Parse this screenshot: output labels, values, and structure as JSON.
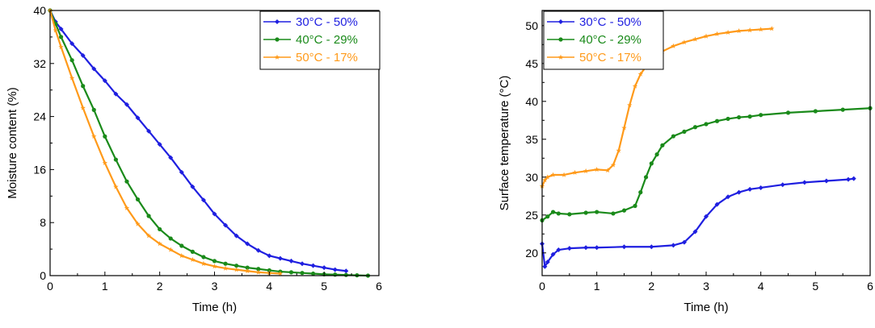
{
  "chart_data": [
    {
      "type": "line",
      "title": "",
      "xlabel": "Time (h)",
      "ylabel": "Moisture content (%)",
      "xlim": [
        0,
        6
      ],
      "ylim": [
        0,
        40
      ],
      "xticks": [
        0,
        1,
        2,
        3,
        4,
        5,
        6
      ],
      "yticks": [
        0,
        8,
        16,
        24,
        32,
        40
      ],
      "grid": false,
      "legend_position": "top-right",
      "series": [
        {
          "name": "30°C - 50%",
          "color": "#1f1fe0",
          "marker": "diamond",
          "x": [
            0,
            0.1,
            0.2,
            0.4,
            0.6,
            0.8,
            1.0,
            1.2,
            1.4,
            1.6,
            1.8,
            2.0,
            2.2,
            2.4,
            2.6,
            2.8,
            3.0,
            3.2,
            3.4,
            3.6,
            3.8,
            4.0,
            4.2,
            4.4,
            4.6,
            4.8,
            5.0,
            5.2,
            5.4
          ],
          "y": [
            40,
            38.3,
            37.2,
            35.0,
            33.2,
            31.2,
            29.4,
            27.4,
            25.8,
            23.8,
            21.8,
            19.8,
            17.8,
            15.6,
            13.4,
            11.4,
            9.3,
            7.6,
            6.0,
            4.8,
            3.8,
            3.0,
            2.6,
            2.2,
            1.8,
            1.5,
            1.2,
            0.9,
            0.7
          ]
        },
        {
          "name": "40°C - 29%",
          "color": "#1a8a1a",
          "marker": "circle",
          "x": [
            0,
            0.1,
            0.2,
            0.4,
            0.6,
            0.8,
            1.0,
            1.2,
            1.4,
            1.6,
            1.8,
            2.0,
            2.2,
            2.4,
            2.6,
            2.8,
            3.0,
            3.2,
            3.4,
            3.6,
            3.8,
            4.0,
            4.2,
            4.4,
            4.6,
            4.8,
            5.0,
            5.2,
            5.4,
            5.6,
            5.8
          ],
          "y": [
            40,
            38.0,
            36.0,
            32.5,
            28.6,
            25.0,
            21.0,
            17.5,
            14.2,
            11.5,
            9.0,
            7.0,
            5.6,
            4.5,
            3.6,
            2.8,
            2.2,
            1.8,
            1.5,
            1.2,
            1.0,
            0.8,
            0.6,
            0.5,
            0.4,
            0.3,
            0.2,
            0.15,
            0.1,
            0.05,
            0.0
          ]
        },
        {
          "name": "50°C - 17%",
          "color": "#ff9a1a",
          "marker": "star",
          "x": [
            0,
            0.1,
            0.2,
            0.4,
            0.6,
            0.8,
            1.0,
            1.2,
            1.4,
            1.6,
            1.8,
            2.0,
            2.2,
            2.4,
            2.6,
            2.8,
            3.0,
            3.2,
            3.4,
            3.6,
            3.8,
            4.0,
            4.2
          ],
          "y": [
            40,
            37.0,
            34.5,
            29.8,
            25.3,
            21.0,
            17.0,
            13.4,
            10.2,
            7.8,
            6.0,
            4.8,
            3.9,
            3.0,
            2.4,
            1.8,
            1.4,
            1.1,
            0.9,
            0.7,
            0.5,
            0.4,
            0.3
          ]
        }
      ]
    },
    {
      "type": "line",
      "title": "",
      "xlabel": "Time (h)",
      "ylabel": "Surface temperature (°C)",
      "xlim": [
        0,
        6
      ],
      "ylim": [
        17,
        52
      ],
      "xticks": [
        0,
        1,
        2,
        3,
        4,
        5,
        6
      ],
      "yticks": [
        20,
        25,
        30,
        35,
        40,
        45,
        50
      ],
      "grid": false,
      "legend_position": "top-left",
      "series": [
        {
          "name": "30°C - 50%",
          "color": "#1f1fe0",
          "marker": "diamond",
          "x": [
            0,
            0.05,
            0.1,
            0.2,
            0.3,
            0.5,
            0.8,
            1.0,
            1.5,
            2.0,
            2.4,
            2.6,
            2.8,
            3.0,
            3.2,
            3.4,
            3.6,
            3.8,
            4.0,
            4.4,
            4.8,
            5.2,
            5.6,
            5.7
          ],
          "y": [
            21.2,
            18.2,
            18.8,
            19.8,
            20.4,
            20.6,
            20.7,
            20.7,
            20.8,
            20.8,
            21.0,
            21.4,
            22.8,
            24.8,
            26.4,
            27.4,
            28.0,
            28.4,
            28.6,
            29.0,
            29.3,
            29.5,
            29.7,
            29.8
          ]
        },
        {
          "name": "40°C - 29%",
          "color": "#1a8a1a",
          "marker": "circle",
          "x": [
            0,
            0.1,
            0.2,
            0.3,
            0.5,
            0.8,
            1.0,
            1.3,
            1.5,
            1.7,
            1.8,
            1.9,
            2.0,
            2.1,
            2.2,
            2.4,
            2.6,
            2.8,
            3.0,
            3.2,
            3.4,
            3.6,
            3.8,
            4.0,
            4.5,
            5.0,
            5.5,
            6.0
          ],
          "y": [
            24.3,
            24.8,
            25.4,
            25.2,
            25.1,
            25.3,
            25.4,
            25.2,
            25.6,
            26.2,
            28.0,
            30.0,
            31.8,
            33.0,
            34.2,
            35.4,
            36.0,
            36.6,
            37.0,
            37.4,
            37.7,
            37.9,
            38.0,
            38.2,
            38.5,
            38.7,
            38.9,
            39.1
          ]
        },
        {
          "name": "50°C - 17%",
          "color": "#ff9a1a",
          "marker": "star",
          "x": [
            0,
            0.05,
            0.1,
            0.2,
            0.4,
            0.6,
            0.8,
            1.0,
            1.2,
            1.3,
            1.4,
            1.5,
            1.6,
            1.7,
            1.8,
            1.9,
            2.0,
            2.2,
            2.4,
            2.6,
            2.8,
            3.0,
            3.2,
            3.4,
            3.6,
            3.8,
            4.0,
            4.2
          ],
          "y": [
            28.8,
            29.6,
            30.0,
            30.3,
            30.3,
            30.6,
            30.8,
            31.0,
            30.9,
            31.6,
            33.5,
            36.5,
            39.5,
            42.0,
            43.6,
            44.6,
            45.4,
            46.6,
            47.3,
            47.8,
            48.2,
            48.6,
            48.9,
            49.1,
            49.3,
            49.4,
            49.5,
            49.6
          ]
        }
      ]
    }
  ]
}
